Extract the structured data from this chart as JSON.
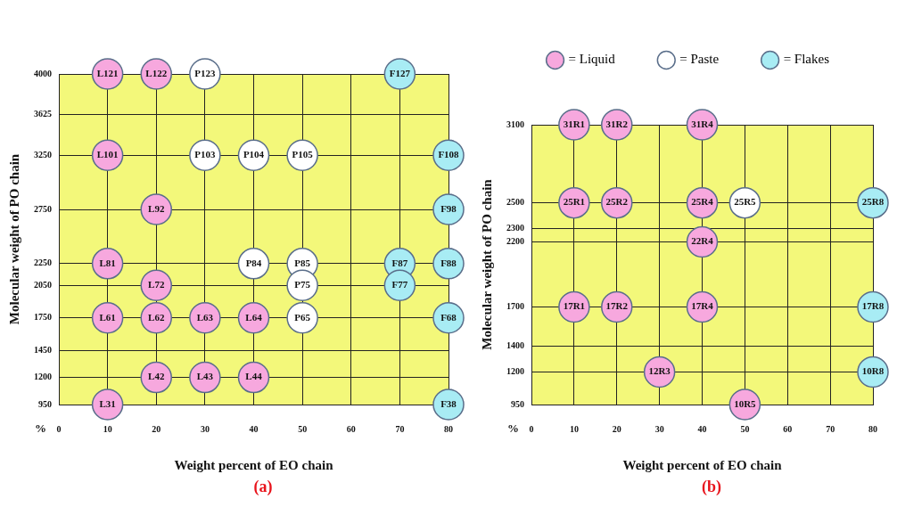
{
  "chart_data": [
    {
      "type": "scatter",
      "xlabel": "Weight percent of EO chain",
      "ylabel": "Molecular weight of PO chain",
      "annotations": [
        "%",
        "(a)"
      ],
      "xlim": [
        0,
        80
      ],
      "xticks": [
        0,
        10,
        20,
        30,
        40,
        50,
        60,
        70,
        80
      ],
      "ylim": [
        950,
        4000
      ],
      "yticks": [
        950,
        1200,
        1450,
        1750,
        2050,
        2250,
        2750,
        3250,
        3625,
        4000
      ],
      "grid": true,
      "legend": false,
      "marker": "circle",
      "series": [
        {
          "color": "#f7a8de",
          "x": [
            10,
            20,
            10,
            20,
            10,
            20,
            10,
            20,
            30,
            40,
            20,
            30,
            40,
            10
          ],
          "values": [
            4000,
            4000,
            3250,
            2750,
            2250,
            2050,
            1750,
            1750,
            1750,
            1750,
            1200,
            1200,
            1200,
            950
          ],
          "value_labels": [
            "L121",
            "L122",
            "L101",
            "L92",
            "L81",
            "L72",
            "L61",
            "L62",
            "L63",
            "L64",
            "L42",
            "L43",
            "L44",
            "L31"
          ]
        },
        {
          "color": "#ffffff",
          "x": [
            30,
            30,
            40,
            50,
            40,
            50,
            50,
            50
          ],
          "values": [
            4000,
            3250,
            3250,
            3250,
            2250,
            2250,
            2050,
            1750
          ],
          "value_labels": [
            "P123",
            "P103",
            "P104",
            "P105",
            "P84",
            "P85",
            "P75",
            "P65"
          ]
        },
        {
          "color": "#a8ecf4",
          "x": [
            70,
            80,
            80,
            70,
            80,
            70,
            80,
            80
          ],
          "values": [
            4000,
            3250,
            2750,
            2250,
            2250,
            2050,
            1750,
            950
          ],
          "value_labels": [
            "F127",
            "F108",
            "F98",
            "F87",
            "F88",
            "F77",
            "F68",
            "F38"
          ]
        }
      ]
    },
    {
      "type": "scatter",
      "xlabel": "Weight percent of EO chain",
      "ylabel": "Molecular weight of PO chain",
      "annotations": [
        "%",
        "(b)"
      ],
      "xlim": [
        0,
        80
      ],
      "xticks": [
        0,
        10,
        20,
        30,
        40,
        50,
        60,
        70,
        80
      ],
      "ylim": [
        950,
        3100
      ],
      "yticks": [
        950,
        1200,
        1400,
        1700,
        2200,
        2300,
        2500,
        3100
      ],
      "grid": true,
      "legend": "top right",
      "marker": "circle",
      "series": [
        {
          "name": "= Liquid",
          "color": "#f7a8de",
          "x": [
            10,
            20,
            40,
            10,
            20,
            40,
            40,
            10,
            20,
            40,
            30,
            50
          ],
          "values": [
            3100,
            3100,
            3100,
            2500,
            2500,
            2500,
            2200,
            1700,
            1700,
            1700,
            1200,
            950
          ],
          "value_labels": [
            "31R1",
            "31R2",
            "31R4",
            "25R1",
            "25R2",
            "25R4",
            "22R4",
            "17R1",
            "17R2",
            "17R4",
            "12R3",
            "10R5"
          ]
        },
        {
          "name": "= Paste",
          "color": "#ffffff",
          "x": [
            50
          ],
          "values": [
            2500
          ],
          "value_labels": [
            "25R5"
          ]
        },
        {
          "name": "= Flakes",
          "color": "#a8ecf4",
          "x": [
            80,
            80,
            80
          ],
          "values": [
            2500,
            1700,
            1200
          ],
          "value_labels": [
            "25R8",
            "17R8",
            "10R8"
          ]
        }
      ]
    }
  ]
}
